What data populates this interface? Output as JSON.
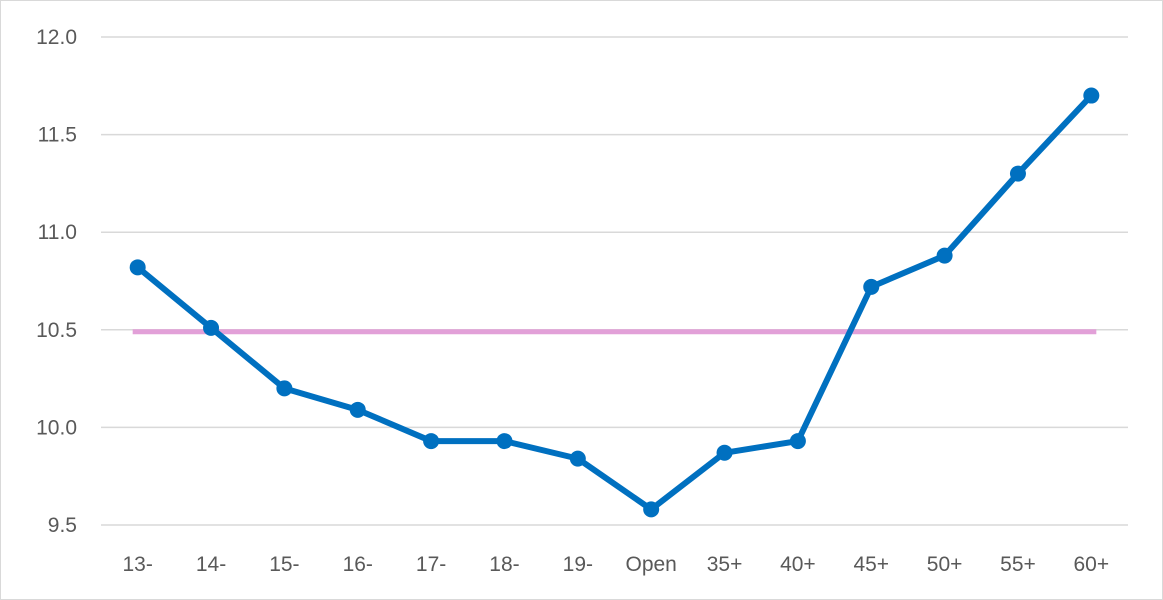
{
  "chart_data": {
    "type": "line",
    "title": "",
    "xlabel": "",
    "ylabel": "",
    "categories": [
      "13-",
      "14-",
      "15-",
      "16-",
      "17-",
      "18-",
      "19-",
      "Open",
      "35+",
      "40+",
      "45+",
      "50+",
      "55+",
      "60+"
    ],
    "ylim": [
      9.5,
      12.0
    ],
    "yticks": [
      "9.5",
      "10.0",
      "10.5",
      "11.0",
      "11.5",
      "12.0"
    ],
    "grid": "horizontal",
    "legend": "none",
    "series": [
      {
        "values": [
          10.82,
          10.51,
          10.2,
          10.09,
          9.93,
          9.93,
          9.84,
          9.58,
          9.87,
          9.93,
          10.72,
          10.88,
          11.3,
          11.7
        ],
        "color": "#0070c0",
        "markers": true
      }
    ],
    "reference_line": {
      "value": 10.49,
      "color": "#e2a0d8"
    }
  }
}
